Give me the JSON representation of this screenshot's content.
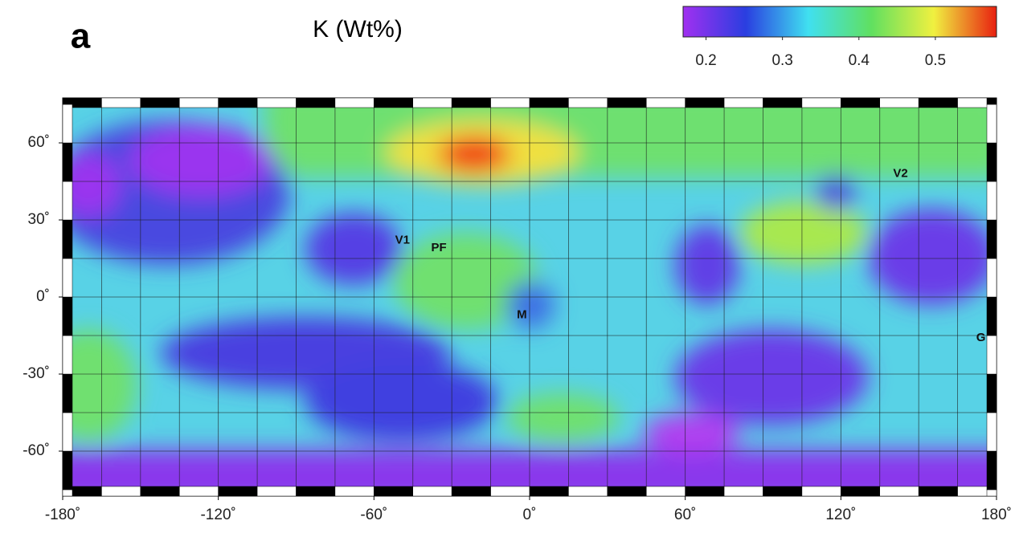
{
  "panel_label": "a",
  "title": "K (Wt%)",
  "colorbar": {
    "colors": [
      "#a030f0",
      "#2a3ee0",
      "#40e0f0",
      "#60e060",
      "#f0f040",
      "#e82010"
    ],
    "lim": [
      0.17,
      0.58
    ],
    "ticks": [
      0.2,
      0.3,
      0.4,
      0.5
    ]
  },
  "map": {
    "xlim": [
      -180,
      180
    ],
    "ylim": [
      -77.5,
      77.5
    ],
    "graticule_step": 15,
    "xticks": [
      {
        "value": -180,
        "label": "-180˚"
      },
      {
        "value": -120,
        "label": "-120˚"
      },
      {
        "value": -60,
        "label": "-60˚"
      },
      {
        "value": 0,
        "label": "0˚"
      },
      {
        "value": 60,
        "label": "60˚"
      },
      {
        "value": 120,
        "label": "120˚"
      },
      {
        "value": 180,
        "label": "180˚"
      }
    ],
    "yticks": [
      {
        "value": -60,
        "label": "-60˚"
      },
      {
        "value": -30,
        "label": "-30˚"
      },
      {
        "value": 0,
        "label": "0˚"
      },
      {
        "value": 30,
        "label": "30˚"
      },
      {
        "value": 60,
        "label": "60˚"
      }
    ],
    "sites": [
      {
        "label": "V1",
        "lon": -49,
        "lat": 22
      },
      {
        "label": "PF",
        "lon": -35,
        "lat": 19
      },
      {
        "label": "M",
        "lon": -3,
        "lat": -7
      },
      {
        "label": "V2",
        "lon": 143,
        "lat": 48
      },
      {
        "label": "G",
        "lon": 174,
        "lat": -16
      }
    ]
  }
}
